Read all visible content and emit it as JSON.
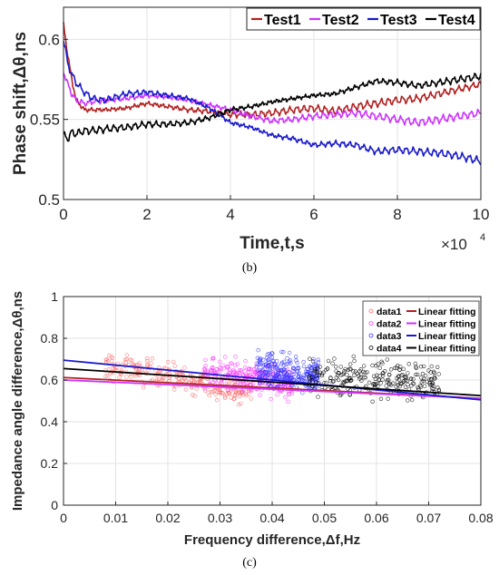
{
  "chart_data": [
    {
      "type": "line",
      "panel_label": "(b)",
      "title": "",
      "xlabel": "Time,t,s",
      "ylabel": "Phase shift,Δθ,ns",
      "x_multiplier": "×10",
      "x_exponent": "4",
      "xlim": [
        0,
        10
      ],
      "ylim": [
        0.5,
        0.62
      ],
      "xticks": [
        0,
        2,
        4,
        6,
        8,
        10
      ],
      "yticks": [
        0.5,
        0.55,
        0.6
      ],
      "ytick_labels": [
        "0.5",
        "0.55",
        "0.6"
      ],
      "grid": true,
      "legend_position": "top-right",
      "x": [
        0,
        0.1,
        0.2,
        0.3,
        0.5,
        0.7,
        1,
        1.5,
        2,
        2.5,
        3,
        3.5,
        4,
        4.5,
        5,
        5.5,
        6,
        6.5,
        7,
        7.5,
        8,
        8.5,
        9,
        9.5,
        10
      ],
      "series": [
        {
          "name": "Test1",
          "color": "#b22222",
          "values": [
            0.61,
            0.59,
            0.575,
            0.562,
            0.556,
            0.556,
            0.556,
            0.557,
            0.56,
            0.558,
            0.556,
            0.555,
            0.553,
            0.553,
            0.554,
            0.556,
            0.557,
            0.555,
            0.558,
            0.56,
            0.562,
            0.563,
            0.566,
            0.569,
            0.572
          ]
        },
        {
          "name": "Test2",
          "color": "#cc33ff",
          "values": [
            0.58,
            0.572,
            0.566,
            0.562,
            0.56,
            0.561,
            0.562,
            0.563,
            0.565,
            0.564,
            0.562,
            0.559,
            0.556,
            0.552,
            0.549,
            0.55,
            0.552,
            0.553,
            0.554,
            0.552,
            0.55,
            0.548,
            0.55,
            0.552,
            0.554
          ]
        },
        {
          "name": "Test3",
          "color": "#1a1acc",
          "values": [
            0.6,
            0.585,
            0.578,
            0.573,
            0.567,
            0.563,
            0.562,
            0.566,
            0.567,
            0.565,
            0.563,
            0.557,
            0.548,
            0.545,
            0.54,
            0.538,
            0.534,
            0.535,
            0.534,
            0.53,
            0.531,
            0.53,
            0.529,
            0.527,
            0.524
          ]
        },
        {
          "name": "Test4",
          "color": "#000000",
          "values": [
            0.54,
            0.538,
            0.542,
            0.541,
            0.543,
            0.543,
            0.544,
            0.545,
            0.547,
            0.547,
            0.548,
            0.551,
            0.556,
            0.558,
            0.561,
            0.563,
            0.565,
            0.566,
            0.57,
            0.574,
            0.573,
            0.571,
            0.573,
            0.575,
            0.577
          ]
        }
      ]
    },
    {
      "type": "scatter",
      "panel_label": "(c)",
      "title": "",
      "xlabel": "Frequency difference,Δf,Hz",
      "ylabel": "Impedance angle difference,Δθ,ns",
      "xlim": [
        0,
        0.08
      ],
      "ylim": [
        0,
        1
      ],
      "xticks": [
        0,
        0.01,
        0.02,
        0.03,
        0.04,
        0.05,
        0.06,
        0.07,
        0.08
      ],
      "xtick_labels": [
        "0",
        "0.01",
        "0.02",
        "0.03",
        "0.04",
        "0.05",
        "0.06",
        "0.07",
        "0.08"
      ],
      "yticks": [
        0,
        0.2,
        0.4,
        0.6,
        0.8,
        1
      ],
      "ytick_labels": [
        "0",
        "0.2",
        "0.4",
        "0.6",
        "0.8",
        "1"
      ],
      "grid": true,
      "legend_position": "top-right",
      "series": [
        {
          "name": "data1",
          "fit_name": "Linear fitting",
          "color": "#ff6666",
          "fit_color": "#b22222",
          "x_range": [
            0.008,
            0.036
          ],
          "center": [
            0.608,
            -4.5
          ],
          "spread": 0.045,
          "fit": [
            [
              0,
              0.612
            ],
            [
              0.08,
              0.512
            ]
          ]
        },
        {
          "name": "data2",
          "fit_name": "Linear fitting",
          "color": "#ff33ff",
          "fit_color": "#cc33ff",
          "x_range": [
            0.027,
            0.044
          ],
          "center": [
            0.61,
            -3.0
          ],
          "spread": 0.05,
          "fit": [
            [
              0,
              0.6
            ],
            [
              0.08,
              0.512
            ]
          ]
        },
        {
          "name": "data3",
          "fit_name": "Linear fitting",
          "color": "#3333ff",
          "fit_color": "#1a1acc",
          "x_range": [
            0.037,
            0.049
          ],
          "center": [
            0.635,
            -2.0
          ],
          "spread": 0.055,
          "fit": [
            [
              0,
              0.695
            ],
            [
              0.08,
              0.505
            ]
          ]
        },
        {
          "name": "data4",
          "fit_name": "Linear fitting",
          "color": "#000000",
          "fit_color": "#000000",
          "x_range": [
            0.047,
            0.072
          ],
          "center": [
            0.605,
            -1.0
          ],
          "spread": 0.065,
          "fit": [
            [
              0,
              0.655
            ],
            [
              0.08,
              0.525
            ]
          ]
        }
      ]
    }
  ]
}
